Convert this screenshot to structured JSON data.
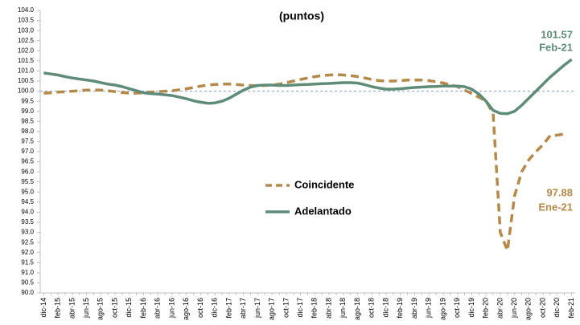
{
  "chart_data": {
    "type": "line",
    "title": "(puntos)",
    "categories": [
      "dic-14",
      null,
      "feb-15",
      null,
      "abr-15",
      null,
      "jun-15",
      null,
      "ago-15",
      null,
      "oct-15",
      null,
      "dic-15",
      null,
      "feb-16",
      null,
      "abr-16",
      null,
      "jun-16",
      null,
      "ago-16",
      null,
      "oct-16",
      null,
      "dic-16",
      null,
      "feb-17",
      null,
      "abr-17",
      null,
      "jun-17",
      null,
      "ago-17",
      null,
      "oct-17",
      null,
      "dic-17",
      null,
      "feb-18",
      null,
      "abr-18",
      null,
      "jun-18",
      null,
      "ago-18",
      null,
      "oct-18",
      null,
      "dic-18",
      null,
      "feb-19",
      null,
      "abr-19",
      null,
      "jun-19",
      null,
      "ago-19",
      null,
      "oct-19",
      null,
      "dic-19",
      null,
      "feb-20",
      null,
      "abr-20",
      null,
      "jun-20",
      null,
      "ago-20",
      null,
      "oct-20",
      null,
      "dic-20",
      null,
      "feb-21"
    ],
    "series": [
      {
        "name": "Coincidente",
        "color": "#b5894a",
        "dashed": true,
        "values": [
          99.9,
          99.92,
          99.95,
          99.97,
          100.0,
          100.02,
          100.05,
          100.05,
          100.05,
          100.02,
          99.98,
          99.93,
          99.9,
          99.9,
          99.92,
          99.95,
          99.97,
          100.0,
          100.02,
          100.07,
          100.12,
          100.18,
          100.25,
          100.3,
          100.33,
          100.35,
          100.35,
          100.33,
          100.3,
          100.28,
          100.27,
          100.28,
          100.3,
          100.35,
          100.42,
          100.5,
          100.58,
          100.65,
          100.72,
          100.77,
          100.8,
          100.82,
          100.8,
          100.77,
          100.72,
          100.65,
          100.58,
          100.52,
          100.5,
          100.5,
          100.52,
          100.55,
          100.55,
          100.55,
          100.52,
          100.47,
          100.4,
          100.32,
          100.22,
          100.05,
          99.88,
          99.7,
          99.5,
          98.9,
          93.0,
          92.1,
          94.8,
          96.0,
          96.6,
          97.0,
          97.35,
          97.8,
          97.82,
          97.88,
          null
        ]
      },
      {
        "name": "Adelantado",
        "color": "#5e8c78",
        "dashed": false,
        "values": [
          100.9,
          100.85,
          100.8,
          100.72,
          100.65,
          100.6,
          100.55,
          100.5,
          100.42,
          100.35,
          100.3,
          100.22,
          100.12,
          100.02,
          99.92,
          99.88,
          99.85,
          99.82,
          99.78,
          99.7,
          99.62,
          99.52,
          99.45,
          99.4,
          99.42,
          99.5,
          99.65,
          99.85,
          100.05,
          100.2,
          100.28,
          100.3,
          100.3,
          100.28,
          100.28,
          100.3,
          100.32,
          100.33,
          100.35,
          100.37,
          100.38,
          100.4,
          100.42,
          100.42,
          100.4,
          100.32,
          100.22,
          100.15,
          100.1,
          100.1,
          100.12,
          100.15,
          100.18,
          100.2,
          100.22,
          100.23,
          100.25,
          100.25,
          100.25,
          100.22,
          100.1,
          99.85,
          99.5,
          99.05,
          98.9,
          98.88,
          99.0,
          99.3,
          99.65,
          100.0,
          100.35,
          100.7,
          101.0,
          101.3,
          101.57
        ]
      }
    ],
    "annotations": [
      {
        "series": 1,
        "index": 74,
        "value_label": "101.57",
        "date_label": "Feb-21"
      },
      {
        "series": 0,
        "index": 73,
        "value_label": "97.88",
        "date_label": "Ene-21"
      }
    ],
    "reference_line": 100,
    "reference_color": "#7f9fc8",
    "ylim": [
      90,
      104
    ],
    "yticks": [
      {
        "value": 90,
        "label": "90.0"
      },
      90.5,
      {
        "value": 91,
        "label": "91.0"
      },
      91.5,
      {
        "value": 92,
        "label": "92.0"
      },
      92.5,
      {
        "value": 93,
        "label": "93.0"
      },
      93.5,
      {
        "value": 94,
        "label": "94.0"
      },
      94.5,
      {
        "value": 95,
        "label": "95.0"
      },
      95.5,
      {
        "value": 96,
        "label": "96.0"
      },
      96.5,
      {
        "value": 97,
        "label": "97.0"
      },
      97.5,
      {
        "value": 98,
        "label": "98.0"
      },
      98.5,
      {
        "value": 99,
        "label": "99.0"
      },
      99.5,
      {
        "value": 100,
        "label": "100.0"
      },
      100.5,
      {
        "value": 101,
        "label": "101.0"
      },
      101.5,
      {
        "value": 102,
        "label": "102.0"
      },
      102.5,
      {
        "value": 103,
        "label": "103.0"
      },
      103.5,
      {
        "value": 104,
        "label": "104.0"
      }
    ],
    "grid": false,
    "legend": "center"
  }
}
